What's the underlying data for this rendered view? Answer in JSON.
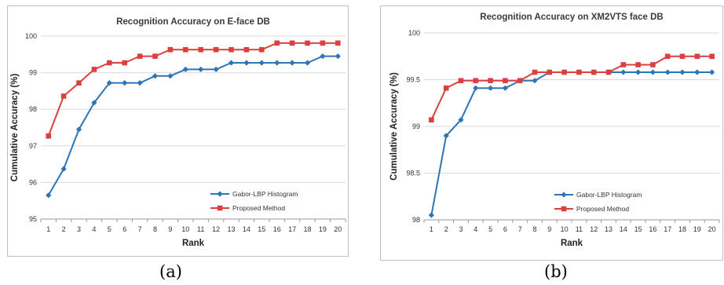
{
  "chart_data": [
    {
      "type": "line",
      "title": "Recognition Accuracy on E-face DB",
      "xlabel": "Rank",
      "ylabel": "Cumulative Accuracy (%)",
      "x": [
        1,
        2,
        3,
        4,
        5,
        6,
        7,
        8,
        9,
        10,
        11,
        12,
        13,
        14,
        15,
        16,
        17,
        18,
        19,
        20
      ],
      "ylim": [
        95,
        100
      ],
      "yticks": [
        "95",
        "96",
        "97",
        "98",
        "99",
        "100"
      ],
      "grid": true,
      "legend_position": "bottom-right",
      "series": [
        {
          "name": "Gabor-LBP Histogram",
          "color": "#2e75b6",
          "marker": "diamond",
          "values": [
            95.65,
            96.37,
            97.45,
            98.18,
            98.72,
            98.72,
            98.72,
            98.91,
            98.91,
            99.09,
            99.09,
            99.09,
            99.27,
            99.27,
            99.27,
            99.27,
            99.27,
            99.27,
            99.45,
            99.45
          ]
        },
        {
          "name": "Proposed Method",
          "color": "#d9413f",
          "marker": "square",
          "values": [
            97.27,
            98.36,
            98.72,
            99.09,
            99.27,
            99.27,
            99.45,
            99.45,
            99.63,
            99.63,
            99.63,
            99.63,
            99.63,
            99.63,
            99.63,
            99.81,
            99.81,
            99.81,
            99.81,
            99.81
          ]
        }
      ]
    },
    {
      "type": "line",
      "title": "Recognition Accuracy on XM2VTS face DB",
      "xlabel": "Rank",
      "ylabel": "Cumulative Accuracy (%)",
      "x": [
        1,
        2,
        3,
        4,
        5,
        6,
        7,
        8,
        9,
        10,
        11,
        12,
        13,
        14,
        15,
        16,
        17,
        18,
        19,
        20
      ],
      "ylim": [
        98,
        100
      ],
      "yticks": [
        "98",
        "98.5",
        "99",
        "99.5",
        "100"
      ],
      "grid": true,
      "legend_position": "bottom-center",
      "series": [
        {
          "name": "Gabor-LBP Histogram",
          "color": "#2e75b6",
          "marker": "diamond",
          "values": [
            98.05,
            98.9,
            99.07,
            99.41,
            99.41,
            99.41,
            99.49,
            99.49,
            99.58,
            99.58,
            99.58,
            99.58,
            99.58,
            99.58,
            99.58,
            99.58,
            99.58,
            99.58,
            99.58,
            99.58
          ]
        },
        {
          "name": "Proposed Method",
          "color": "#d9413f",
          "marker": "square",
          "values": [
            99.07,
            99.41,
            99.49,
            99.49,
            99.49,
            99.49,
            99.49,
            99.58,
            99.58,
            99.58,
            99.58,
            99.58,
            99.58,
            99.66,
            99.66,
            99.66,
            99.75,
            99.75,
            99.75,
            99.75
          ]
        }
      ]
    }
  ],
  "captions": [
    "(a)",
    "(b)"
  ]
}
